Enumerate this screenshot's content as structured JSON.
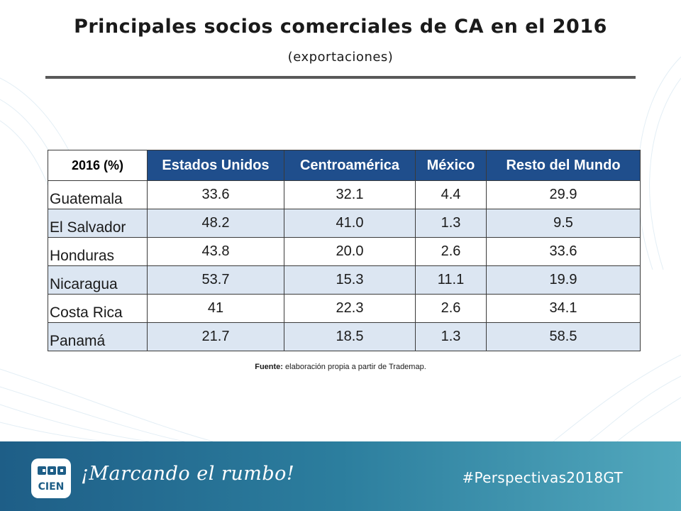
{
  "slide": {
    "title": "Principales socios comerciales de CA en el 2016",
    "subtitle": "(exportaciones)"
  },
  "table": {
    "corner_label": "2016 (%)",
    "columns": [
      "Estados Unidos",
      "Centroamérica",
      "México",
      "Resto del Mundo"
    ],
    "rows": [
      {
        "country": "Guatemala",
        "values": [
          "33.6",
          "32.1",
          "4.4",
          "29.9"
        ]
      },
      {
        "country": "El Salvador",
        "values": [
          "48.2",
          "41.0",
          "1.3",
          "9.5"
        ]
      },
      {
        "country": "Honduras",
        "values": [
          "43.8",
          "20.0",
          "2.6",
          "33.6"
        ]
      },
      {
        "country": "Nicaragua",
        "values": [
          "53.7",
          "15.3",
          "11.1",
          "19.9"
        ]
      },
      {
        "country": "Costa Rica",
        "values": [
          "41",
          "22.3",
          "2.6",
          "34.1"
        ]
      },
      {
        "country": "Panamá",
        "values": [
          "21.7",
          "18.5",
          "1.3",
          "58.5"
        ]
      }
    ]
  },
  "source": {
    "label": "Fuente:",
    "text": " elaboración propia a partir de Trademap."
  },
  "footer": {
    "tagline": "¡Marcando el rumbo!",
    "hashtag": "#Perspectivas2018GT",
    "logo_text": "CIEN",
    "colors": {
      "start": "#1e5e87",
      "end": "#52a8bd"
    }
  },
  "colors": {
    "header_bg": "#1f4e8c",
    "alt_row_bg": "#dce6f2"
  }
}
